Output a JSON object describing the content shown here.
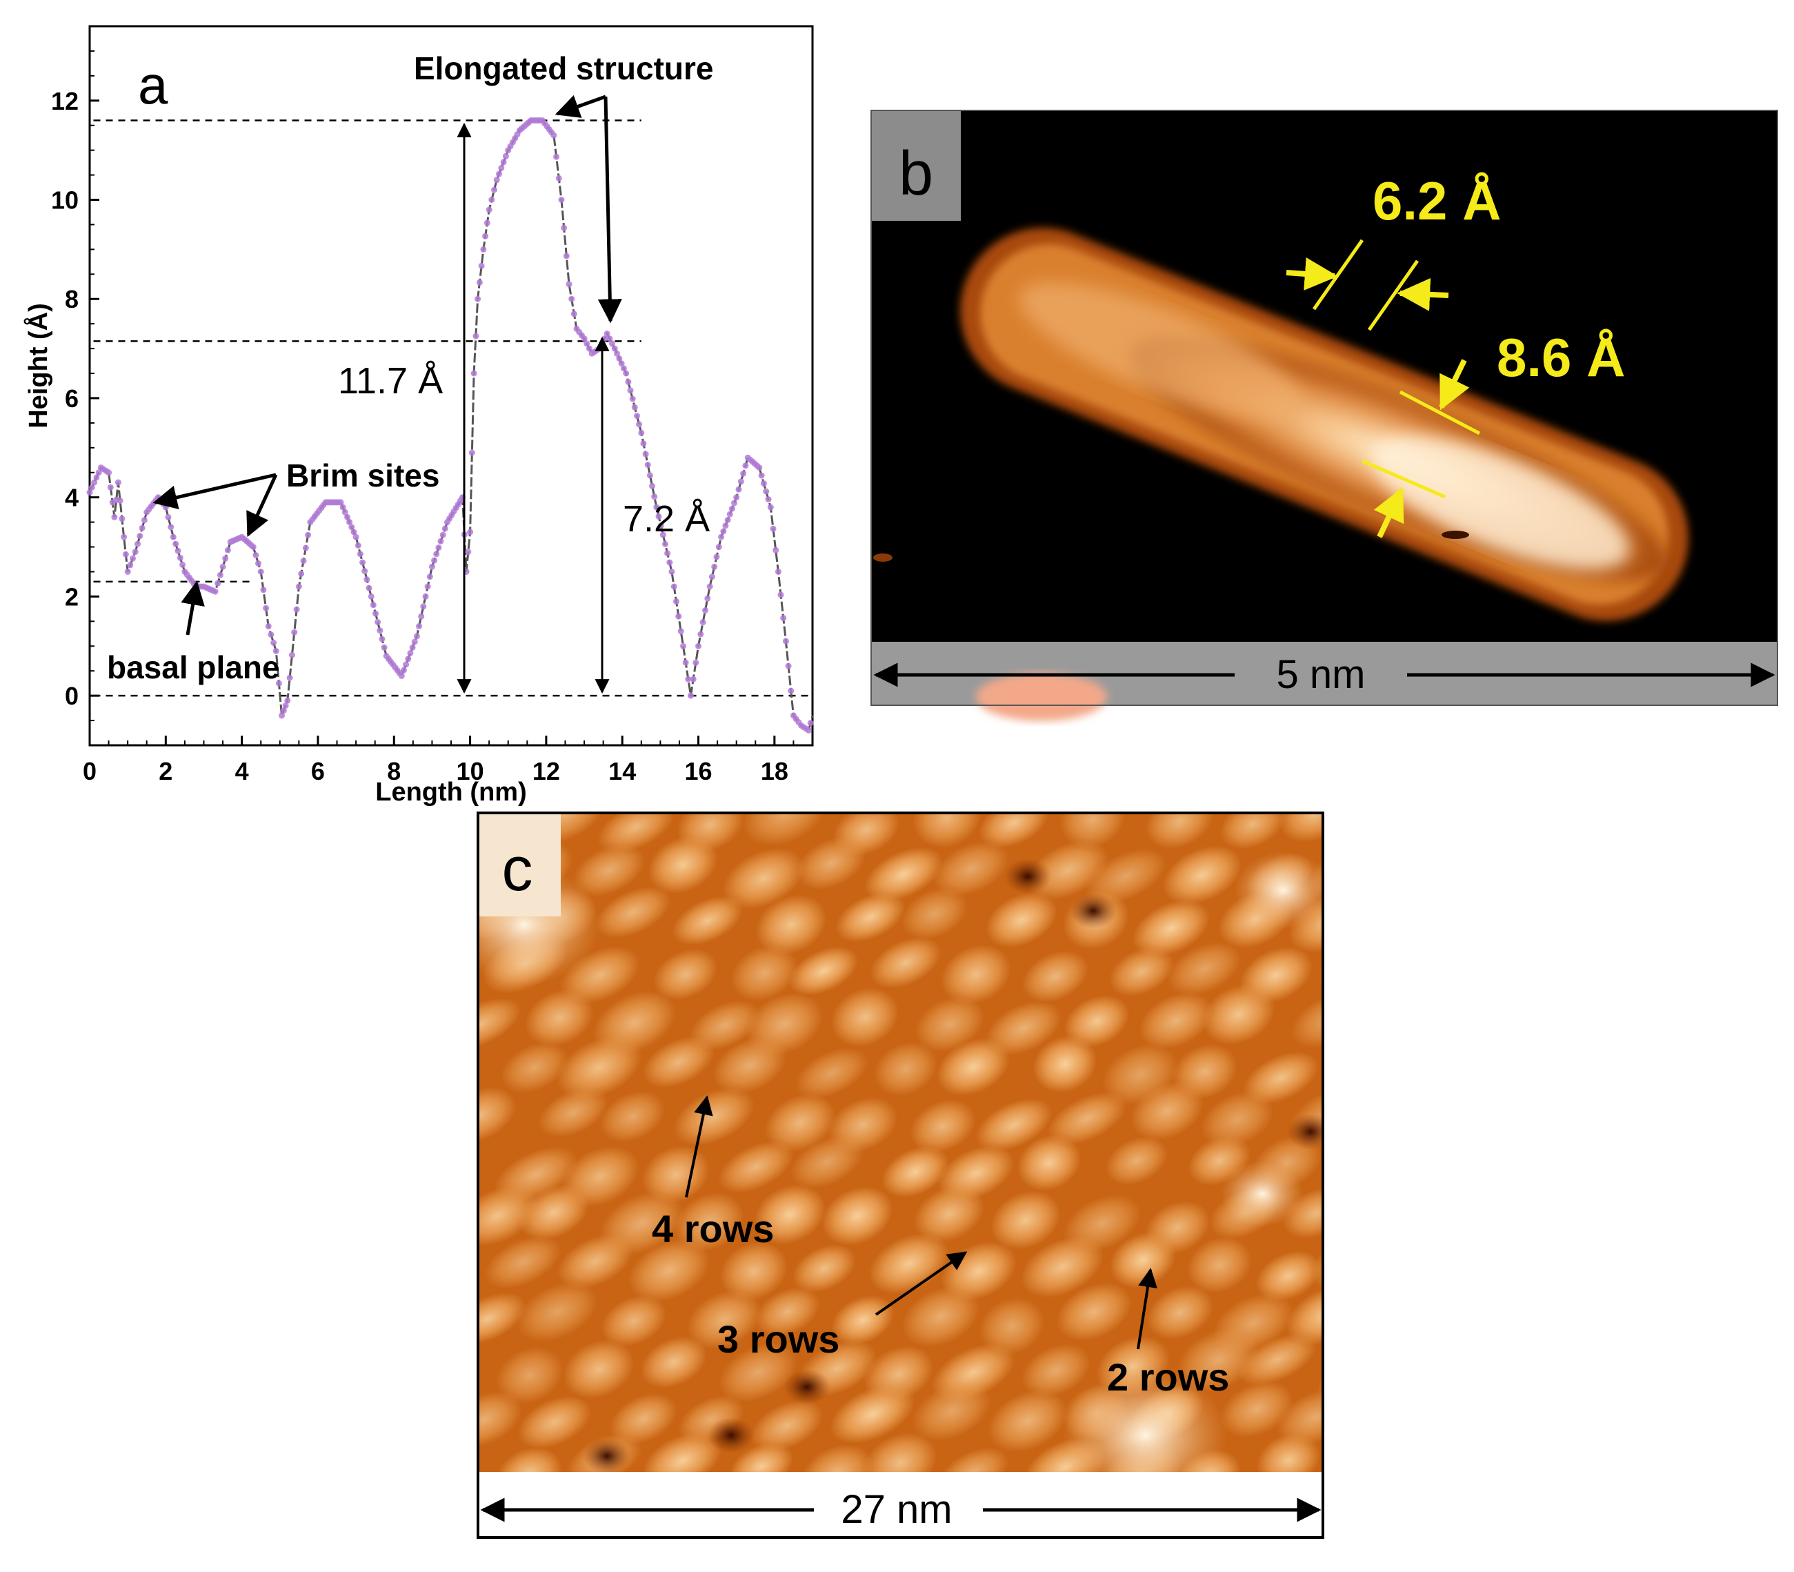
{
  "colors": {
    "profile": "#b27ad6",
    "profile_line": "#555555",
    "stm_dark": "#000000",
    "stm_orange": "#c85a10",
    "stm_light": "#fff0d2",
    "annotation_yellow": "#f5ea1a",
    "scalebar_grey": "#9a9a9a"
  },
  "panel_a": {
    "label": "a",
    "annotations": {
      "elongated": "Elongated structure",
      "brim": "Brim sites",
      "basal": "basal plane",
      "h1": "11.7 Å",
      "h2": "7.2 Å"
    }
  },
  "chart_data": {
    "type": "line",
    "title": "",
    "xlabel": "Length (nm)",
    "ylabel": "Height (Å)",
    "xlim": [
      0,
      19
    ],
    "ylim": [
      -1,
      13.5
    ],
    "xticks": [
      0,
      2,
      4,
      6,
      8,
      10,
      12,
      14,
      16,
      18
    ],
    "yticks": [
      0,
      2,
      4,
      6,
      8,
      10,
      12
    ],
    "reference_lines_y": [
      11.6,
      7.15,
      2.3,
      0
    ],
    "series": [
      {
        "name": "height profile",
        "x": [
          0,
          0.3,
          0.5,
          0.65,
          0.75,
          0.9,
          1.0,
          1.2,
          1.5,
          1.8,
          2.0,
          2.2,
          2.5,
          2.8,
          3.0,
          3.3,
          3.5,
          3.7,
          4.0,
          4.3,
          4.5,
          4.7,
          4.9,
          5.05,
          5.2,
          5.5,
          5.8,
          6.2,
          6.6,
          7.0,
          7.4,
          7.8,
          8.2,
          8.6,
          9.0,
          9.4,
          9.8,
          9.9,
          10.0,
          10.1,
          10.2,
          10.35,
          10.5,
          10.7,
          11.0,
          11.3,
          11.6,
          11.9,
          12.2,
          12.4,
          12.6,
          12.8,
          13.0,
          13.2,
          13.4,
          13.6,
          13.8,
          14.1,
          14.5,
          14.9,
          15.3,
          15.6,
          15.8,
          16.0,
          16.3,
          16.6,
          17.0,
          17.3,
          17.6,
          17.9,
          18.1,
          18.3,
          18.5,
          18.7,
          18.9,
          19.0
        ],
        "y": [
          4.1,
          4.6,
          4.5,
          3.6,
          4.3,
          3.2,
          2.5,
          2.9,
          3.7,
          4.0,
          3.8,
          3.2,
          2.5,
          2.2,
          2.2,
          2.1,
          2.6,
          3.1,
          3.2,
          3.0,
          2.5,
          1.4,
          0.9,
          -0.4,
          -0.1,
          2.2,
          3.5,
          3.9,
          3.9,
          3.2,
          2.0,
          0.8,
          0.4,
          1.2,
          2.6,
          3.5,
          4.0,
          2.5,
          3.3,
          6.5,
          8.0,
          9.0,
          9.8,
          10.4,
          11.0,
          11.4,
          11.6,
          11.6,
          11.3,
          10.0,
          8.3,
          7.4,
          7.2,
          6.9,
          7.0,
          7.3,
          7.0,
          6.5,
          5.3,
          3.8,
          2.5,
          1.0,
          0.0,
          1.0,
          2.2,
          3.2,
          4.0,
          4.8,
          4.6,
          3.8,
          2.5,
          1.1,
          -0.4,
          -0.6,
          -0.7,
          -0.4
        ]
      }
    ]
  },
  "panel_b": {
    "label": "b",
    "width1": "6.2 Å",
    "width2": "8.6 Å",
    "scale": "5 nm"
  },
  "panel_c": {
    "label": "c",
    "rows4": "4 rows",
    "rows3": "3 rows",
    "rows2": "2 rows",
    "scale": "27 nm"
  }
}
